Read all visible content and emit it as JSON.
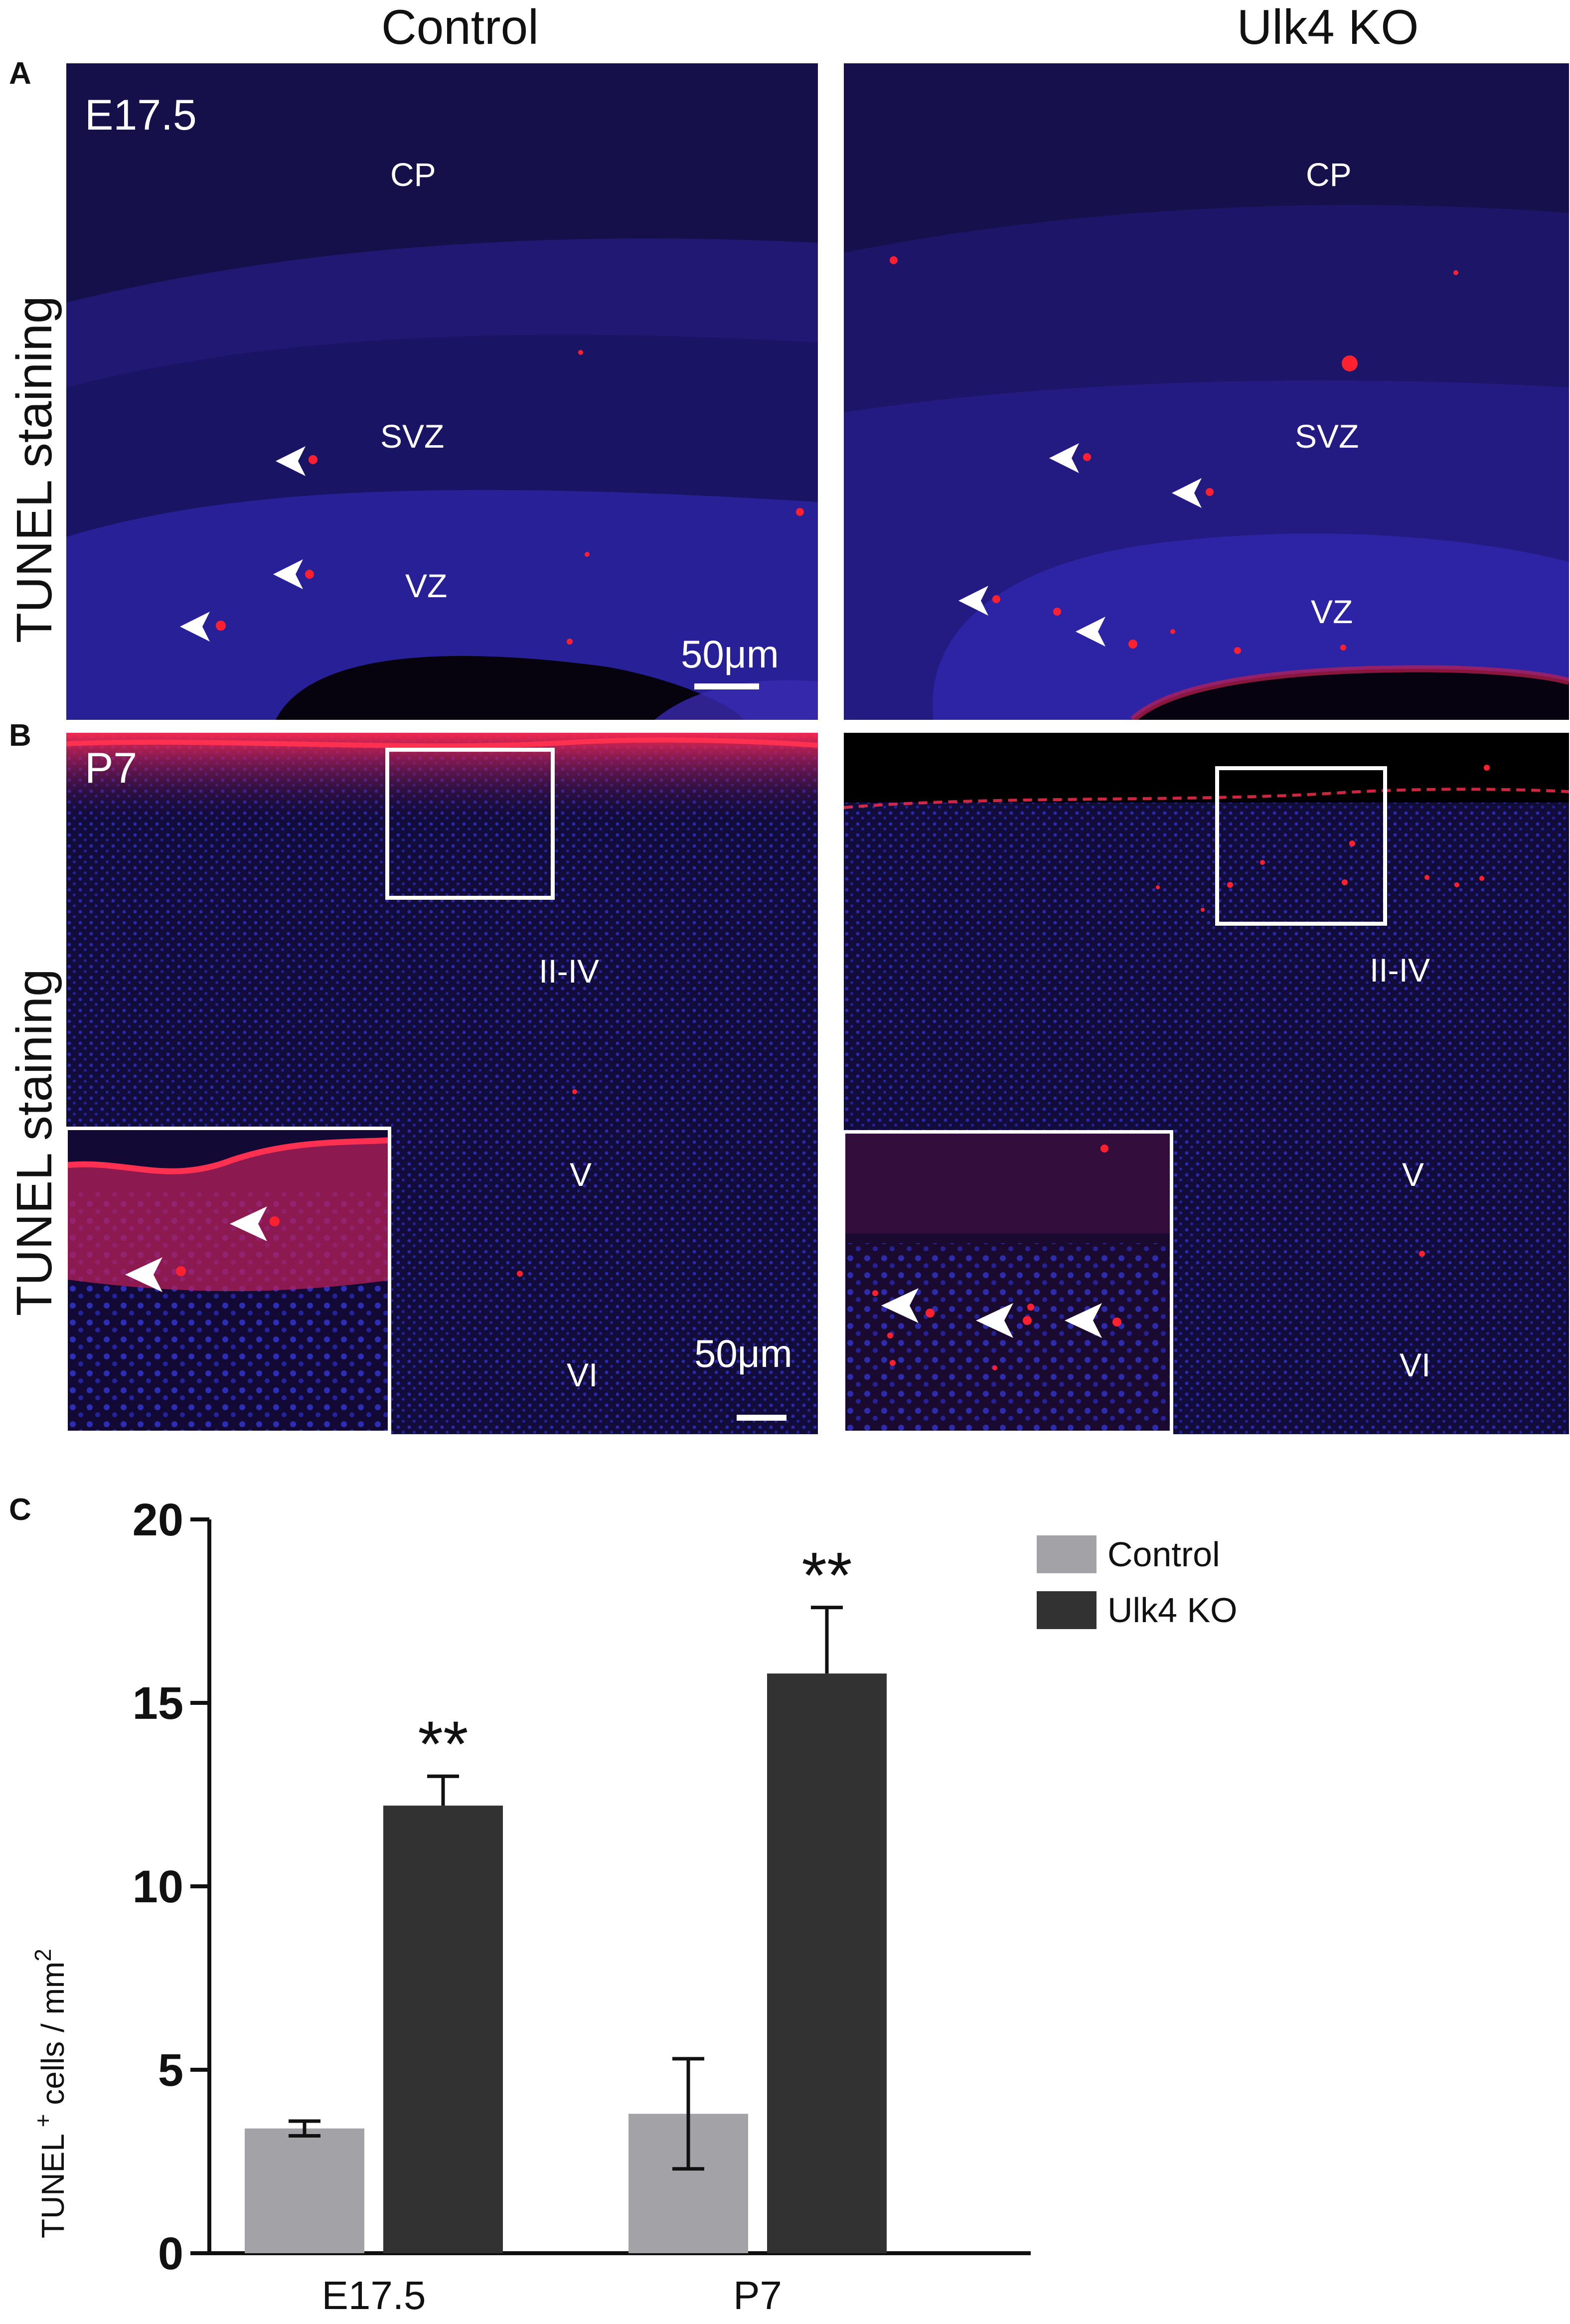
{
  "columns": {
    "left": "Control",
    "right": "Ulk4 KO"
  },
  "panels": {
    "a": {
      "letter": "A",
      "row_label": "TUNEL staining",
      "stage": "E17.5",
      "control": {
        "layers": [
          "CP",
          "SVZ",
          "VZ"
        ],
        "scale": "50μm"
      },
      "ko": {
        "layers": [
          "CP",
          "SVZ",
          "VZ"
        ]
      }
    },
    "b": {
      "letter": "B",
      "row_label": "TUNEL staining",
      "stage": "P7",
      "control": {
        "layers": [
          "II-IV",
          "V",
          "VI"
        ],
        "scale": "50μm"
      },
      "ko": {
        "layers": [
          "II-IV",
          "V",
          "VI"
        ]
      }
    },
    "c": {
      "letter": "C"
    }
  },
  "colors": {
    "tissue_bg": "#0b0426",
    "dapi": "#2a2cc8",
    "tunel": "#ff2030",
    "arrow": "#ffffff",
    "control_bar": "#a3a3a7",
    "ko_bar": "#323232"
  },
  "chart_data": {
    "type": "bar",
    "categories": [
      "E17.5",
      "P7"
    ],
    "series": [
      {
        "name": "Control",
        "values": [
          3.4,
          3.8
        ],
        "errors": [
          0.2,
          1.5
        ],
        "color": "#a3a3a7"
      },
      {
        "name": "Ulk4 KO",
        "values": [
          12.2,
          15.8
        ],
        "errors": [
          0.8,
          1.8
        ],
        "color": "#323232"
      }
    ],
    "ylabel_main": "TUNEL",
    "ylabel_sup": "+",
    "ylabel_rest": " cells / mm",
    "ylabel_sup2": "2",
    "ylim": [
      0,
      20
    ],
    "yticks": [
      0,
      5,
      10,
      15,
      20
    ],
    "significance": [
      {
        "category": "E17.5",
        "series": "Ulk4 KO",
        "label": "**"
      },
      {
        "category": "P7",
        "series": "Ulk4 KO",
        "label": "**"
      }
    ],
    "legend_position": "top-right"
  }
}
